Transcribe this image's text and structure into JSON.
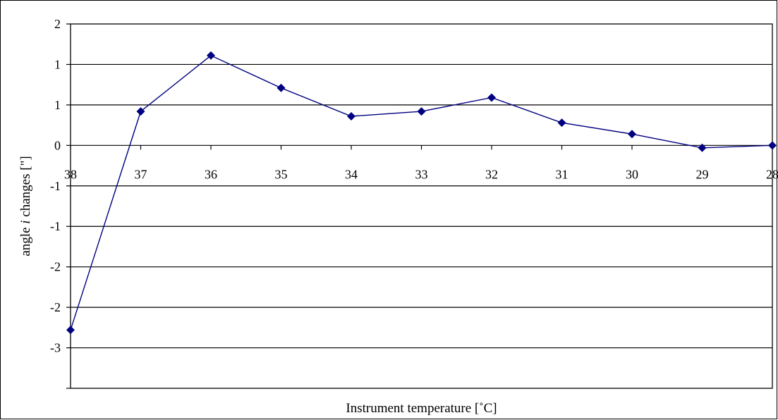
{
  "chart_data": {
    "type": "line",
    "title": "",
    "xlabel": "Instrument temperature [˚C]",
    "ylabel_prefix": "angle ",
    "ylabel_symbol": "i",
    "ylabel_suffix": " changes [\"]",
    "x_ticks": [
      "38",
      "37",
      "36",
      "35",
      "34",
      "33",
      "32",
      "31",
      "30",
      "29",
      "28"
    ],
    "y_axis_values": [
      1.5,
      1.0,
      0.5,
      0.0,
      -0.5,
      -1.0,
      -1.5,
      -2.0,
      -2.5,
      -3.0
    ],
    "y_tick_labels": [
      "2",
      "1",
      "1",
      "0",
      "-1",
      "-1",
      "-2",
      "-2",
      "-3"
    ],
    "ylim": [
      -2.5,
      1.5
    ],
    "grid": true,
    "legend": "none",
    "series": [
      {
        "color": "#000080",
        "x": [
          38,
          37,
          36,
          35,
          34,
          33,
          32,
          31,
          30,
          29,
          28
        ],
        "values": [
          -2.28,
          0.42,
          1.11,
          0.71,
          0.36,
          0.42,
          0.59,
          0.28,
          0.14,
          -0.03,
          0.0
        ]
      }
    ]
  }
}
